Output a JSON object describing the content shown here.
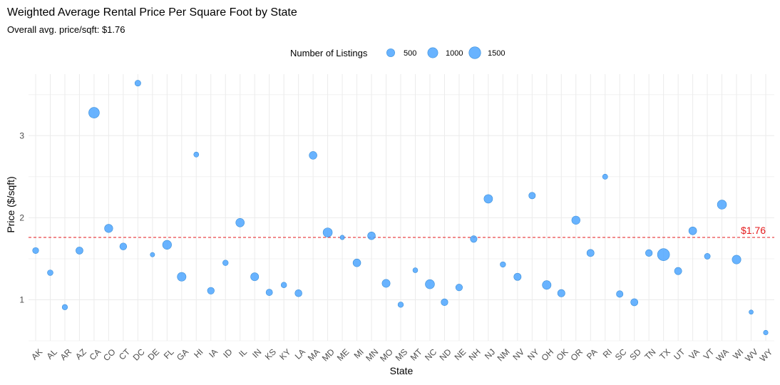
{
  "chart_data": {
    "type": "scatter",
    "title": "Weighted Average Rental Price Per Square Foot by State",
    "subtitle": "Overall avg. price/sqft: $1.76",
    "xlabel": "State",
    "ylabel": "Price ($/sqft)",
    "legend_title": "Number of Listings",
    "legend_position": "top",
    "legend_sizes": [
      {
        "label": "500",
        "value": 500
      },
      {
        "label": "1000",
        "value": 1000
      },
      {
        "label": "1500",
        "value": 1500
      }
    ],
    "point_color": "#4da6ff",
    "reference_line": {
      "value": 1.76,
      "label": "$1.76",
      "color": "#e41a1c"
    },
    "ylim": [
      0.5,
      3.75
    ],
    "yticks": [
      1,
      2,
      3
    ],
    "grid": true,
    "categories": [
      "AK",
      "AL",
      "AR",
      "AZ",
      "CA",
      "CO",
      "CT",
      "DC",
      "DE",
      "FL",
      "GA",
      "HI",
      "IA",
      "ID",
      "IL",
      "IN",
      "KS",
      "KY",
      "LA",
      "MA",
      "MD",
      "ME",
      "MI",
      "MN",
      "MO",
      "MS",
      "MT",
      "NC",
      "ND",
      "NE",
      "NH",
      "NJ",
      "NM",
      "NV",
      "NY",
      "OH",
      "OK",
      "OR",
      "PA",
      "RI",
      "SC",
      "SD",
      "TN",
      "TX",
      "UT",
      "VA",
      "VT",
      "WA",
      "WI",
      "WV",
      "WY"
    ],
    "values": [
      1.6,
      1.33,
      0.91,
      1.6,
      3.28,
      1.87,
      1.65,
      3.64,
      1.55,
      1.67,
      1.28,
      2.77,
      1.11,
      1.45,
      1.94,
      1.28,
      1.09,
      1.18,
      1.08,
      2.76,
      1.82,
      1.76,
      1.45,
      1.78,
      1.2,
      0.94,
      1.36,
      1.19,
      0.97,
      1.15,
      1.74,
      2.23,
      1.43,
      1.28,
      2.27,
      1.18,
      1.08,
      1.97,
      1.57,
      2.5,
      1.07,
      0.97,
      1.57,
      1.55,
      1.35,
      1.84,
      1.53,
      2.16,
      1.49,
      0.85,
      0.6
    ],
    "listings": [
      200,
      150,
      120,
      350,
      1150,
      550,
      320,
      180,
      50,
      700,
      650,
      90,
      300,
      140,
      600,
      500,
      250,
      140,
      330,
      450,
      760,
      50,
      450,
      440,
      500,
      130,
      80,
      750,
      300,
      290,
      280,
      620,
      130,
      370,
      270,
      650,
      380,
      560,
      360,
      100,
      270,
      350,
      300,
      1600,
      370,
      470,
      170,
      750,
      650,
      40,
      60
    ]
  }
}
